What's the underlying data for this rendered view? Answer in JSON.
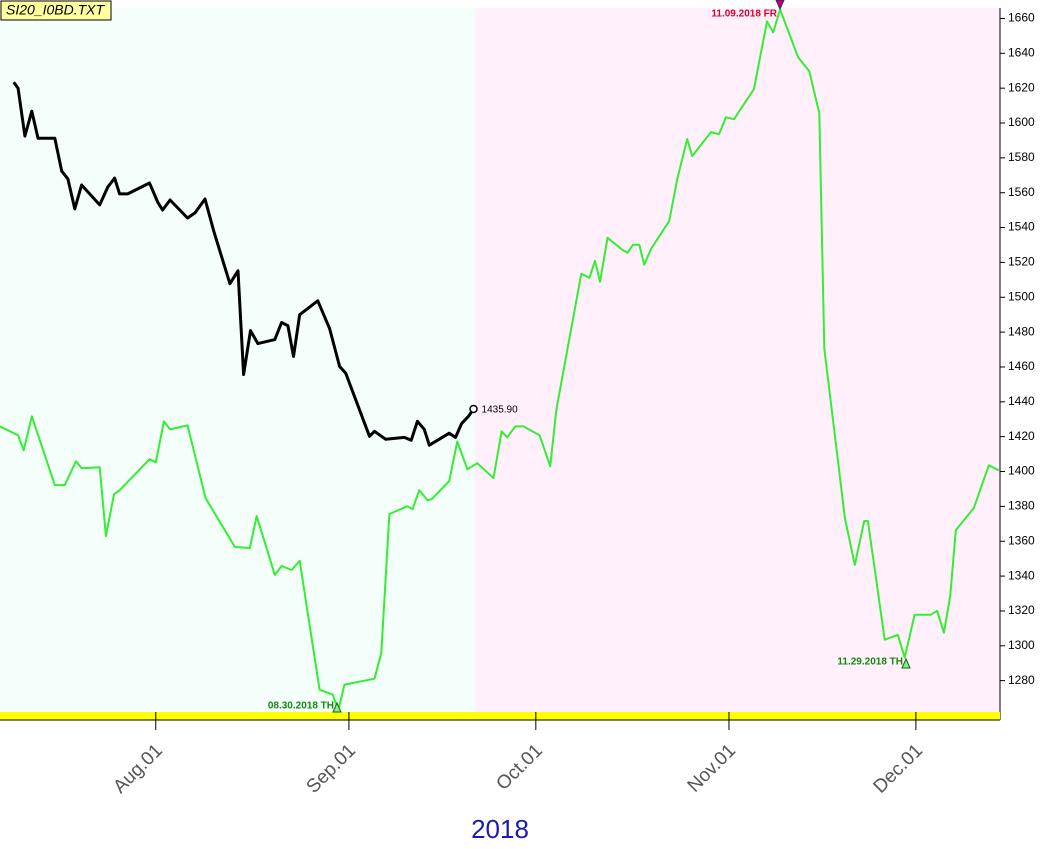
{
  "chart_data": {
    "type": "line",
    "title": "SI20_I0BD.TXT",
    "xlabel": "2018",
    "xlim": [
      188,
      348.5
    ],
    "xticks": [
      {
        "value": 213,
        "label": "Aug.01"
      },
      {
        "value": 244,
        "label": "Sep.01"
      },
      {
        "value": 274,
        "label": "Oct.01"
      },
      {
        "value": 305,
        "label": "Nov.01"
      },
      {
        "value": 335,
        "label": "Dec.01"
      }
    ],
    "ylim": [
      1262,
      1666
    ],
    "yticks": [
      1280,
      1300,
      1320,
      1340,
      1360,
      1380,
      1400,
      1420,
      1440,
      1460,
      1480,
      1500,
      1520,
      1540,
      1560,
      1580,
      1600,
      1620,
      1640,
      1660
    ],
    "series": [
      {
        "color": "#000000",
        "x": [
          190.2,
          190.9,
          192.0,
          193.1,
          194.1,
          196.8,
          197.9,
          198.9,
          200.0,
          201.1,
          204.0,
          205.3,
          206.4,
          207.2,
          208.5,
          212.0,
          213.3,
          214.1,
          215.3,
          218.1,
          219.3,
          220.9,
          222.3,
          224.9,
          226.2,
          227.1,
          228.2,
          229.4,
          232.1,
          233.2,
          234.2,
          235.1,
          236.1,
          239.0,
          240.9,
          242.5,
          243.5,
          247.3,
          248.1,
          249.9,
          252.9,
          254.0,
          255.0,
          256.1,
          256.9,
          260.1,
          261.1,
          262.1,
          263.2,
          264.0
        ],
        "values": [
          1623.4,
          1619.9,
          1592.5,
          1606.8,
          1591.3,
          1591.3,
          1572.4,
          1567.9,
          1550.7,
          1564.4,
          1553,
          1563.3,
          1568.4,
          1559.3,
          1559.3,
          1565.6,
          1554.7,
          1550.1,
          1555.8,
          1545.5,
          1548.4,
          1556.4,
          1538.1,
          1507.8,
          1515.2,
          1455.7,
          1480.9,
          1473.4,
          1475.7,
          1485.5,
          1483.7,
          1466,
          1490,
          1498,
          1482,
          1460.3,
          1456.3,
          1420.2,
          1423.1,
          1418.5,
          1419.6,
          1417.9,
          1428.8,
          1424.2,
          1415.1,
          1422,
          1419.6,
          1427.6,
          1431.7,
          1435.9
        ],
        "last_label": "1435.90"
      },
      {
        "color": "#33ee33",
        "x": [
          188.0,
          190.9,
          191.8,
          193.1,
          196.8,
          198.4,
          200.2,
          201.1,
          204.0,
          205.0,
          206.3,
          207.2,
          212.0,
          213.0,
          214.3,
          215.3,
          218.1,
          221.0,
          225.7,
          228.1,
          229.2,
          232.1,
          233.2,
          234.8,
          236.1,
          239.3,
          241.4,
          242.3,
          243.3,
          248.1,
          249.2,
          250.5,
          253.4,
          254.2,
          255.3,
          256.6,
          257.3,
          260.1,
          261.4,
          263.0,
          264.6,
          267.2,
          268.5,
          269.4,
          270.7,
          272.0,
          274.6,
          276.3,
          277.3,
          281.3,
          282.6,
          283.5,
          284.3,
          285.5,
          287.9,
          288.7,
          289.6,
          290.6,
          291.4,
          292.5,
          295.4,
          296.7,
          298.3,
          299.1,
          302.1,
          303.4,
          304.5,
          305.8,
          309.0,
          311.1,
          312.1,
          313.2,
          316.1,
          317.9,
          319.5,
          320.3,
          323.6,
          325.2,
          326.7,
          327.3,
          330.0,
          332.1,
          333.2,
          334.8,
          337.4,
          338.4,
          339.5,
          340.5,
          341.4,
          344.3,
          346.7,
          348.3
        ],
        "values": [
          1425.9,
          1420.8,
          1412.2,
          1431.7,
          1392.2,
          1392.2,
          1405.9,
          1401.9,
          1402.5,
          1363,
          1387,
          1389.3,
          1407,
          1405.3,
          1428.8,
          1424.2,
          1426.5,
          1384.7,
          1356.7,
          1356.1,
          1374.4,
          1340.7,
          1345.8,
          1343.5,
          1348.7,
          1274.8,
          1272,
          1263,
          1277.7,
          1281.1,
          1296,
          1375.6,
          1380.1,
          1378.4,
          1389.3,
          1383.6,
          1384.2,
          1394.5,
          1417.3,
          1401.3,
          1404.8,
          1396.2,
          1423.1,
          1419.6,
          1425.9,
          1425.9,
          1420.8,
          1403,
          1435.7,
          1513.5,
          1511.2,
          1520.9,
          1508.9,
          1534.1,
          1527.2,
          1525.5,
          1530.1,
          1530.1,
          1518.7,
          1527.8,
          1543.8,
          1567.9,
          1590.8,
          1581,
          1594.8,
          1593.6,
          1603.3,
          1602.2,
          1619.4,
          1658.3,
          1652,
          1665.2,
          1637.7,
          1629.7,
          1605.6,
          1470.6,
          1373.3,
          1346.4,
          1371.6,
          1371.6,
          1303.5,
          1306.3,
          1293.2,
          1317.8,
          1317.8,
          1320.1,
          1307.5,
          1328.6,
          1366.4,
          1379,
          1403.6,
          1400.7
        ]
      }
    ],
    "annotations": [
      {
        "text": "11.09.2018 FR",
        "color": "#e0002a"
      },
      {
        "text": "08.30.2018 TH",
        "color": "#118811"
      },
      {
        "text": "11.29.2018 TH",
        "color": "#118811"
      }
    ]
  }
}
